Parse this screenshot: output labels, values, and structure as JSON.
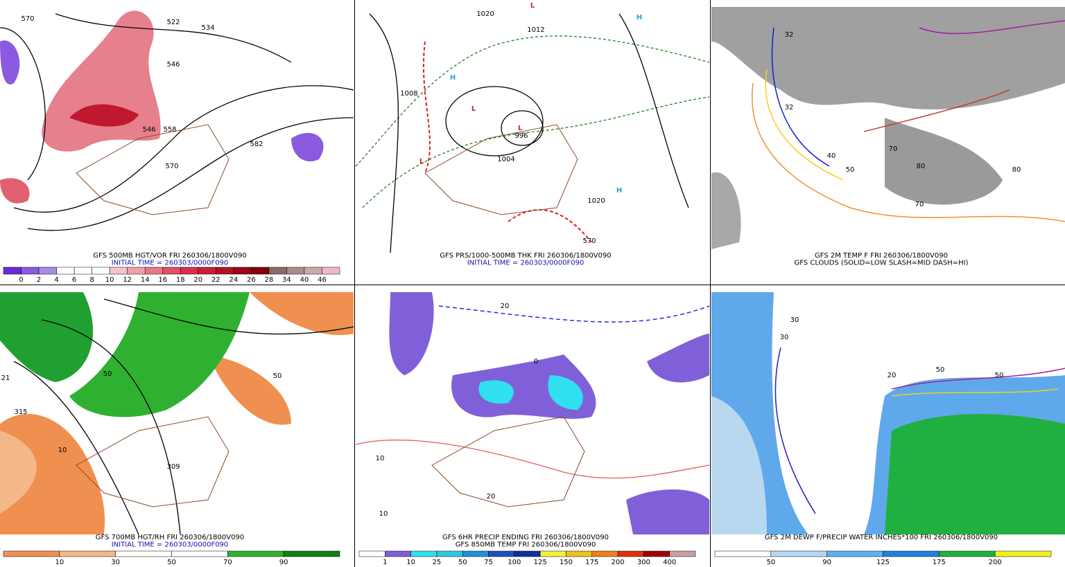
{
  "panels": [
    {
      "caption": [
        {
          "text": "GFS 500MB HGT/VOR FRI 260306/1800V090",
          "color": "#000000"
        },
        {
          "text": "INITIAL TIME = 260303/0000F090",
          "color": "#1010b0"
        }
      ],
      "colorbar": {
        "colors": [
          "#6a2ad8",
          "#8a5ae0",
          "#a98be8",
          "#ffffff",
          "#ffffff",
          "#ffffff",
          "#f4c4c8",
          "#eea0a8",
          "#e87888",
          "#e05068",
          "#d8304c",
          "#c81e36",
          "#b01226",
          "#98081a",
          "#800010",
          "#8a6a6a",
          "#a88c8c",
          "#c8aaaa",
          "#f0b8c8"
        ],
        "labels": [
          0,
          2,
          4,
          6,
          8,
          10,
          12,
          14,
          16,
          18,
          20,
          22,
          24,
          26,
          28,
          34,
          40,
          46
        ]
      },
      "map_labels": [
        "570",
        "522",
        "534",
        "546",
        "546",
        "558",
        "570",
        "582"
      ]
    },
    {
      "caption": [
        {
          "text": "GFS PRS/1000-500MB THK FRI 260306/1800V090",
          "color": "#000000"
        },
        {
          "text": "INITIAL TIME = 260303/0000F090",
          "color": "#1010b0"
        }
      ],
      "map_labels": [
        "1020",
        "1012",
        "1008",
        "1004",
        "996",
        "1020",
        "570",
        "H",
        "H",
        "H",
        "L",
        "L",
        "L",
        "L"
      ]
    },
    {
      "caption": [
        {
          "text": "GFS 2M TEMP F FRI 260306/1800V090",
          "color": "#000000"
        },
        {
          "text": "GFS CLOUDS (SOLID=LOW SLASH=MID DASH=HI)",
          "color": "#000000"
        }
      ],
      "map_labels": [
        "32",
        "32",
        "40",
        "50",
        "70",
        "80",
        "80",
        "70"
      ]
    },
    {
      "caption": [
        {
          "text": "GFS 700MB HGT/RH FRI 260306/1800V090",
          "color": "#000000"
        },
        {
          "text": "INITIAL TIME = 260303/0000F090",
          "color": "#1010b0"
        }
      ],
      "colorbar": {
        "colors": [
          "#f09050",
          "#f4b888",
          "#ffffff",
          "#ffffff",
          "#30b030",
          "#108010"
        ],
        "labels": [
          10,
          30,
          50,
          70,
          90
        ]
      },
      "map_labels": [
        "315",
        "309",
        "50",
        "10",
        "50",
        "21"
      ]
    },
    {
      "caption": [
        {
          "text": "GFS 6HR PRECIP ENDING FRI 260306/1800V090",
          "color": "#000000"
        },
        {
          "text": "GFS 850MB TEMP FRI 260306/1800V090",
          "color": "#000000"
        }
      ],
      "colorbar": {
        "colors": [
          "#ffffff",
          "#8060d8",
          "#30e0f0",
          "#30c8e0",
          "#2090d8",
          "#1850c0",
          "#1030a0",
          "#f0f040",
          "#f0c020",
          "#f08020",
          "#e03010",
          "#a00000",
          "#c8a0a0"
        ],
        "labels": [
          1,
          10,
          25,
          50,
          75,
          100,
          125,
          150,
          175,
          200,
          300,
          400
        ]
      },
      "map_labels": [
        "10",
        "20",
        "0",
        "10",
        "20"
      ]
    },
    {
      "caption": [
        {
          "text": "GFS 2M DEWP F/PRECIP WATER INCHES*100 FRI 260306/1800V090",
          "color": "#000000"
        }
      ],
      "colorbar": {
        "colors": [
          "#ffffff",
          "#b8d8f0",
          "#60b0f0",
          "#2080e0",
          "#20b040",
          "#f0f020"
        ],
        "labels": [
          50,
          90,
          125,
          175,
          200
        ]
      },
      "map_labels": [
        "30",
        "50",
        "50",
        "20",
        "30"
      ]
    }
  ]
}
